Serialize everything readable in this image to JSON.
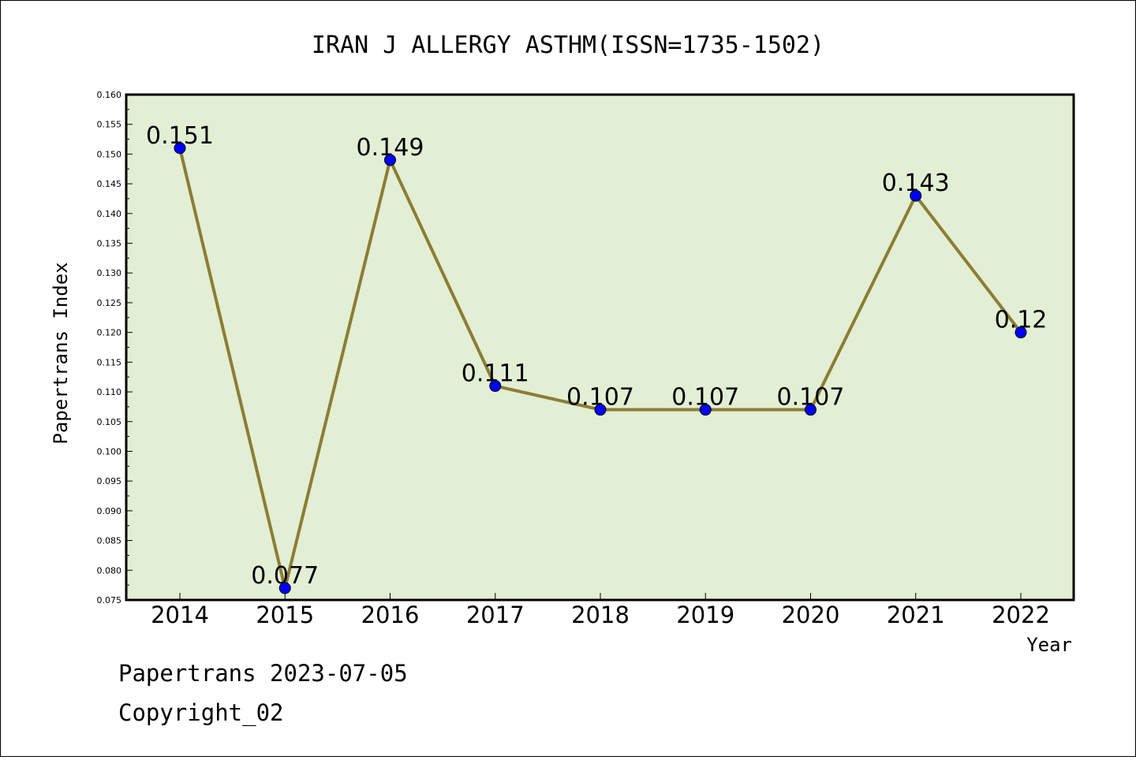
{
  "chart_data": {
    "type": "line",
    "title": "IRAN J ALLERGY ASTHM(ISSN=1735-1502)",
    "xlabel": "Year",
    "ylabel": "Papertrans Index",
    "categories": [
      "2014",
      "2015",
      "2016",
      "2017",
      "2018",
      "2019",
      "2020",
      "2021",
      "2022"
    ],
    "values": [
      0.151,
      0.077,
      0.149,
      0.111,
      0.107,
      0.107,
      0.107,
      0.143,
      0.12
    ],
    "value_labels": [
      "0.151",
      "0.077",
      "0.149",
      "0.111",
      "0.107",
      "0.107",
      "0.107",
      "0.143",
      "0.12"
    ],
    "ylim": [
      0.075,
      0.16
    ],
    "yticks": [
      "0.075",
      "0.080",
      "0.085",
      "0.090",
      "0.095",
      "0.100",
      "0.105",
      "0.110",
      "0.115",
      "0.120",
      "0.125",
      "0.130",
      "0.135",
      "0.140",
      "0.145",
      "0.150",
      "0.155",
      "0.160"
    ],
    "grid": false,
    "colors": {
      "plot_background": "#e2efd4",
      "line": "#8b7d35",
      "marker": "#0000ff"
    }
  },
  "footer": {
    "line1": "Papertrans 2023-07-05",
    "line2": "Copyright_02"
  }
}
